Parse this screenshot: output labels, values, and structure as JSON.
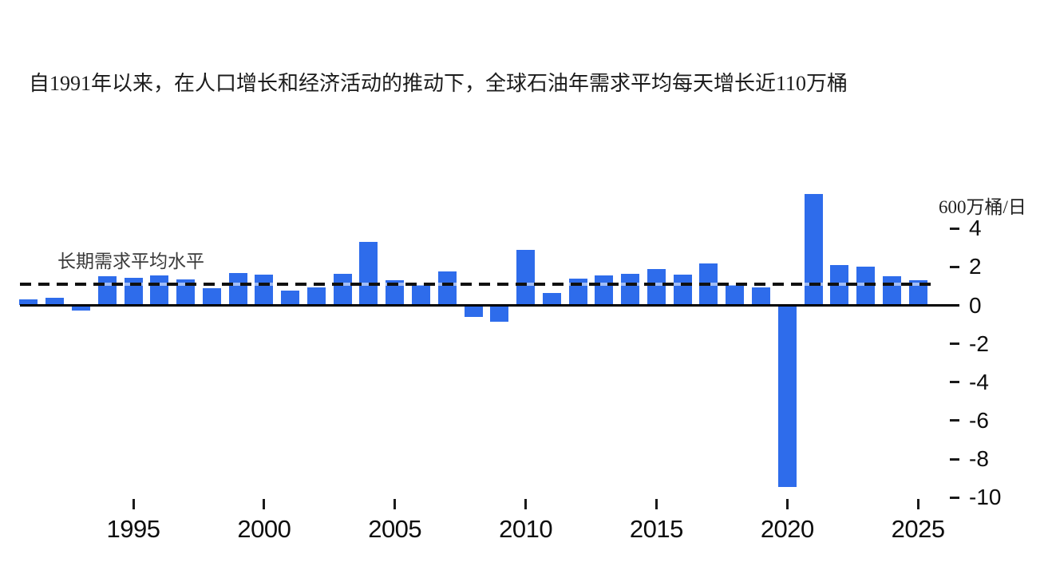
{
  "header": {
    "title": "自1991年以来，在人口增长和经济活动的推动下，全球石油年需求平均每天增长近110万桶"
  },
  "colors": {
    "bar": "#2e6ceb",
    "axis": "#000000",
    "avg_line": "#111111"
  },
  "chart_data": {
    "type": "bar",
    "title": "自1991年以来，在人口增长和经济活动的推动下，全球石油年需求平均每天增长近110万桶",
    "unit_label": "600万桶/日",
    "ylabel": "",
    "xlabel": "",
    "ylim": [
      -10,
      6
    ],
    "grid": false,
    "legend_position": "none",
    "x": [
      1991,
      1992,
      1993,
      1994,
      1995,
      1996,
      1997,
      1998,
      1999,
      2000,
      2001,
      2002,
      2003,
      2004,
      2005,
      2006,
      2007,
      2008,
      2009,
      2010,
      2011,
      2012,
      2013,
      2014,
      2015,
      2016,
      2017,
      2018,
      2019,
      2020,
      2021,
      2022,
      2023,
      2024,
      2025
    ],
    "values": [
      0.3,
      0.4,
      -0.2,
      1.5,
      1.45,
      1.55,
      1.35,
      0.9,
      1.7,
      1.6,
      0.75,
      0.95,
      1.65,
      3.3,
      1.3,
      1.05,
      1.75,
      -0.55,
      -0.8,
      2.9,
      0.65,
      1.4,
      1.55,
      1.65,
      1.9,
      1.6,
      2.2,
      1.05,
      0.95,
      -9.4,
      5.8,
      2.1,
      2.0,
      1.5,
      1.3
    ],
    "avg_line": {
      "value": 1.1,
      "label": "长期需求平均水平"
    },
    "y_ticks": [
      4,
      2,
      0,
      -2,
      -4,
      -6,
      -8,
      -10
    ],
    "x_ticks": [
      1995,
      2000,
      2005,
      2010,
      2015,
      2020,
      2025
    ]
  }
}
